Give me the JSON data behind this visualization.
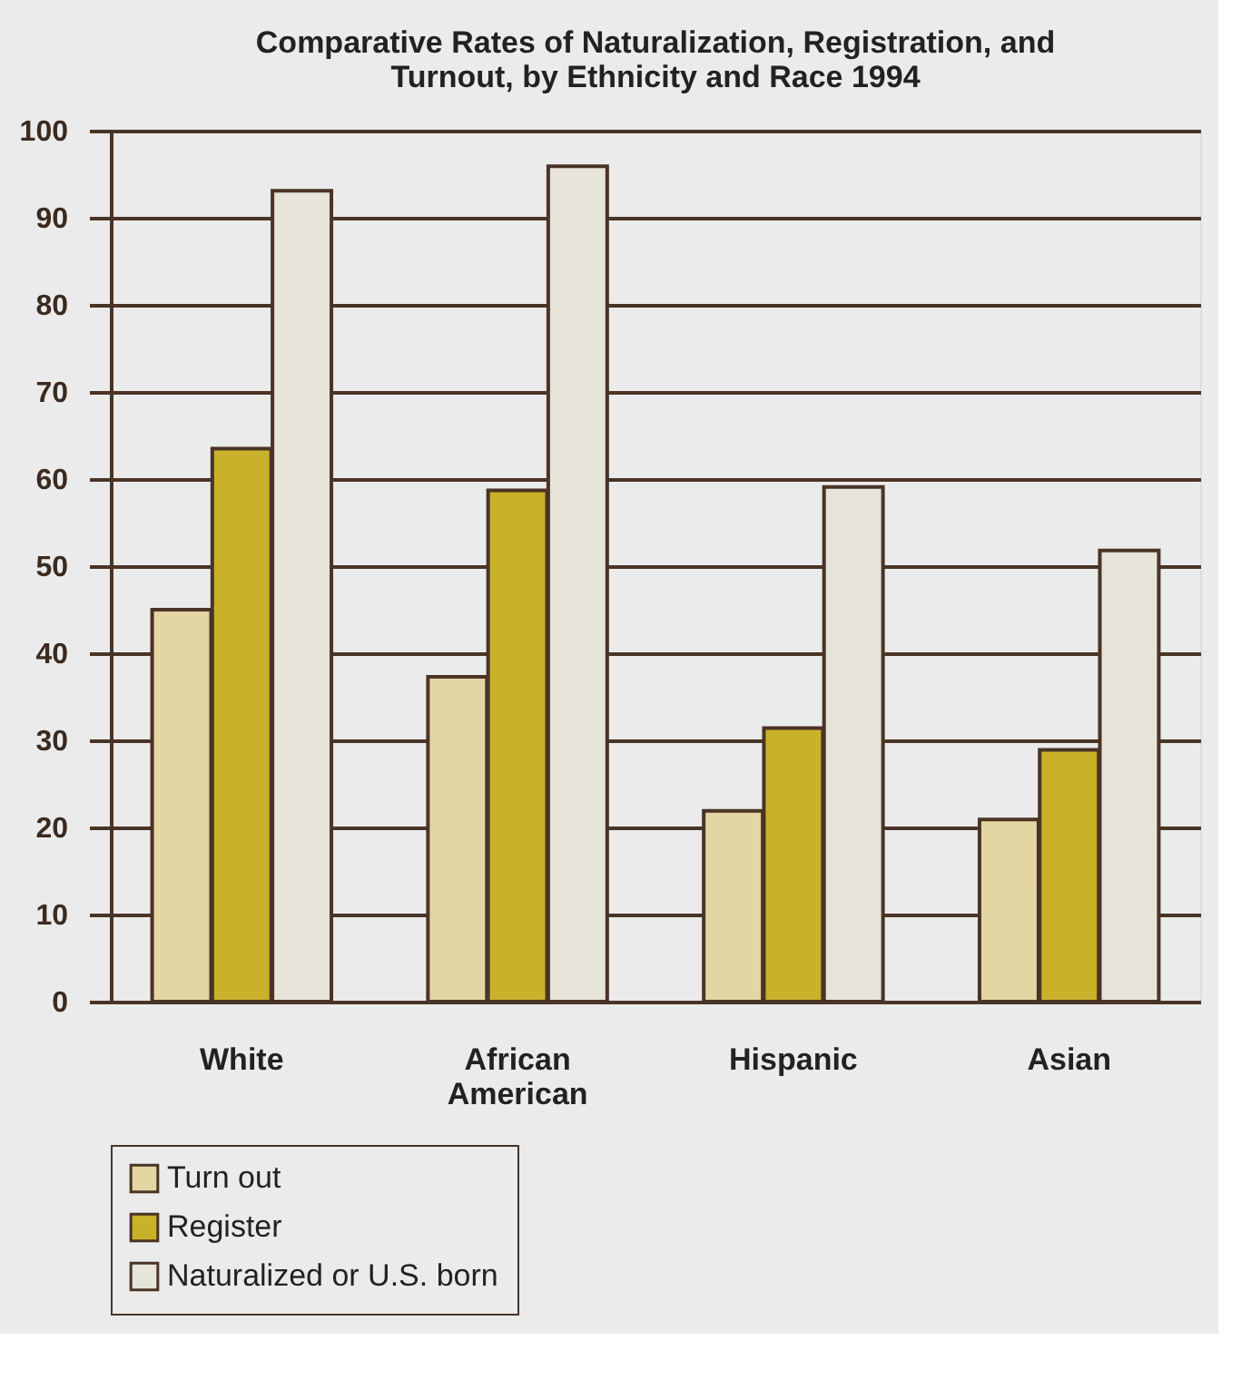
{
  "chart_data": {
    "type": "bar",
    "title": "Comparative Rates of Naturalization, Registration, and Turnout, by Ethnicity and Race 1994",
    "categories": [
      "White",
      "African American",
      "Hispanic",
      "Asian"
    ],
    "series": [
      {
        "name": "Turn out",
        "color": "#e3d6a2",
        "values": [
          45,
          37.3,
          21.9,
          20.9
        ]
      },
      {
        "name": "Register",
        "color": "#c9b12a",
        "values": [
          63.5,
          58.7,
          31.4,
          28.9
        ]
      },
      {
        "name": "Naturalized or U.S. born",
        "color": "#e7e4d9",
        "values": [
          93.1,
          95.9,
          59.1,
          51.8
        ]
      }
    ],
    "ylim": [
      0,
      100
    ],
    "yticks": [
      0,
      10,
      20,
      30,
      40,
      50,
      60,
      70,
      80,
      90,
      100
    ],
    "grid": "y",
    "legend": "bottom"
  }
}
